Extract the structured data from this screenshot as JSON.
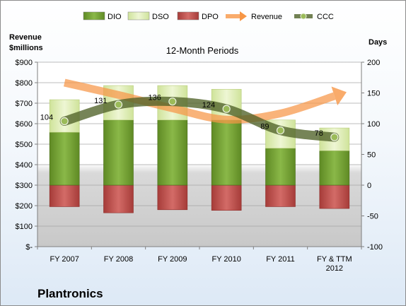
{
  "chart_data": {
    "type": "bar",
    "title": "12-Month Periods",
    "left_axis_label_line1": "Revenue",
    "left_axis_label_line2": "$millions",
    "right_axis_label": "Days",
    "company": "Plantronics",
    "categories": [
      [
        "FY 2007"
      ],
      [
        "FY 2008"
      ],
      [
        "FY 2009"
      ],
      [
        "FY 2010"
      ],
      [
        "FY 2011"
      ],
      [
        "FY & TTM",
        "2012"
      ]
    ],
    "left_axis": {
      "min": 0,
      "max": 900,
      "step": 100,
      "tick_labels": [
        "$-",
        "$100",
        "$200",
        "$300",
        "$400",
        "$500",
        "$600",
        "$700",
        "$800",
        "$900"
      ]
    },
    "right_axis": {
      "min": -100,
      "max": 200,
      "step": 50,
      "tick_labels": [
        "-100",
        "-50",
        "0",
        "50",
        "100",
        "150",
        "200"
      ]
    },
    "legend": {
      "placement": "top",
      "items": [
        "DIO",
        "DSO",
        "DPO",
        "Revenue",
        "CCC"
      ]
    },
    "series": [
      {
        "name": "DIO",
        "axis": "right",
        "values": [
          86,
          106,
          106,
          106,
          60,
          56
        ],
        "color": "#6f9a2e"
      },
      {
        "name": "DSO",
        "axis": "right",
        "values": [
          53,
          56,
          56,
          50,
          46,
          37
        ],
        "color": "#d8e9a8"
      },
      {
        "name": "DPO",
        "axis": "right",
        "values": [
          -35,
          -45,
          -40,
          -41,
          -35,
          -38
        ],
        "color": "#c0504d"
      },
      {
        "name": "Revenue",
        "axis": "left",
        "values": [
          800,
          740,
          675,
          620,
          650,
          735
        ],
        "color": "#f79646"
      },
      {
        "name": "CCC",
        "axis": "right",
        "values": [
          104,
          131,
          136,
          124,
          89,
          78
        ],
        "color": "#4f6228"
      }
    ],
    "ccc_labels": [
      "104",
      "131",
      "136",
      "124",
      "89",
      "78"
    ],
    "grid": true
  }
}
